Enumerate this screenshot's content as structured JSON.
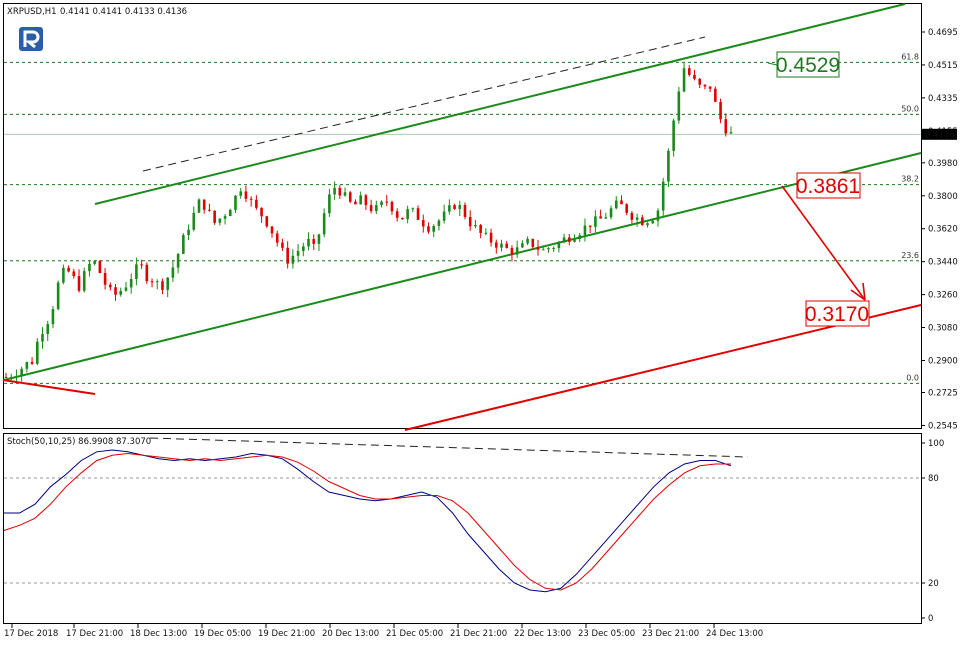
{
  "chart_data": {
    "type": "candlestick",
    "symbol": "XRPUSD,H1",
    "header_values": [
      "0.4141",
      "0.4141",
      "0.4133",
      "0.4136"
    ],
    "current_price": "0.4136",
    "price_ticks": [
      "0.4695",
      "0.4515",
      "0.4335",
      "0.4155",
      "0.3980",
      "0.3800",
      "0.3620",
      "0.3440",
      "0.3260",
      "0.3080",
      "0.2900",
      "0.2725",
      "0.2545"
    ],
    "time_ticks": [
      "17 Dec 2018",
      "17 Dec 21:00",
      "18 Dec 13:00",
      "19 Dec 05:00",
      "19 Dec 21:00",
      "20 Dec 13:00",
      "21 Dec 05:00",
      "21 Dec 21:00",
      "22 Dec 13:00",
      "23 Dec 05:00",
      "23 Dec 21:00",
      "24 Dec 13:00"
    ],
    "fibonacci": [
      {
        "label": "61.8",
        "price": 0.4529
      },
      {
        "label": "50.0",
        "price": 0.4245
      },
      {
        "label": "38.2",
        "price": 0.3861
      },
      {
        "label": "23.6",
        "price": 0.3445
      },
      {
        "label": "0.0",
        "price": 0.2775
      }
    ],
    "price_labels": [
      {
        "text": "0.4529",
        "color": "#1f7a1f"
      },
      {
        "text": "0.3861",
        "color": "#e00000"
      },
      {
        "text": "0.3170",
        "color": "#e00000"
      }
    ],
    "close_path": [
      0.281,
      0.283,
      0.285,
      0.288,
      0.29,
      0.305,
      0.31,
      0.32,
      0.335,
      0.34,
      0.335,
      0.33,
      0.34,
      0.345,
      0.338,
      0.33,
      0.325,
      0.328,
      0.332,
      0.338,
      0.342,
      0.336,
      0.334,
      0.33,
      0.335,
      0.342,
      0.352,
      0.362,
      0.37,
      0.378,
      0.372,
      0.365,
      0.368,
      0.372,
      0.378,
      0.385,
      0.38,
      0.373,
      0.37,
      0.365,
      0.358,
      0.35,
      0.345,
      0.348,
      0.352,
      0.355,
      0.35,
      0.365,
      0.378,
      0.385,
      0.382,
      0.376,
      0.375,
      0.378,
      0.374,
      0.372,
      0.375,
      0.378,
      0.37,
      0.368,
      0.372,
      0.37,
      0.366,
      0.363,
      0.365,
      0.368,
      0.372,
      0.376,
      0.372,
      0.366,
      0.362,
      0.358,
      0.356,
      0.354,
      0.352,
      0.35,
      0.35,
      0.352,
      0.355,
      0.352,
      0.35,
      0.352,
      0.353,
      0.356,
      0.358,
      0.36,
      0.362,
      0.365,
      0.366,
      0.368,
      0.372,
      0.375,
      0.374,
      0.37,
      0.368,
      0.366,
      0.368,
      0.37,
      0.39,
      0.41,
      0.435,
      0.45,
      0.445,
      0.44,
      0.438,
      0.44,
      0.425,
      0.418,
      0.4136
    ],
    "stoch": {
      "title": "Stoch(50,10,25) 86.9908 87.3070",
      "main": 86.9908,
      "signal": 87.307,
      "levels": [
        80,
        20
      ],
      "ticks": [
        "100",
        "80",
        "20",
        "0"
      ],
      "main_path": [
        60,
        60,
        65,
        75,
        82,
        90,
        95,
        96,
        95,
        93,
        91,
        90,
        91,
        90,
        91,
        92,
        94,
        93,
        91,
        85,
        78,
        72,
        70,
        68,
        67,
        68,
        70,
        72,
        69,
        60,
        48,
        38,
        28,
        20,
        16,
        15,
        17,
        25,
        35,
        45,
        55,
        65,
        75,
        83,
        88,
        90,
        90,
        87
      ],
      "signal_path": [
        50,
        53,
        57,
        65,
        75,
        83,
        90,
        93,
        94,
        93,
        92,
        91,
        90,
        91,
        90,
        91,
        92,
        93,
        92,
        89,
        84,
        78,
        74,
        70,
        68,
        68,
        69,
        70,
        70,
        67,
        60,
        50,
        40,
        30,
        22,
        17,
        16,
        20,
        28,
        38,
        48,
        58,
        68,
        76,
        83,
        87,
        88,
        88
      ]
    },
    "colors": {
      "channel": "#1b8a1b",
      "target": "#e00000",
      "fib": "#1a7a1a",
      "stoch_main": "#000080",
      "stoch_signal": "#e00000"
    }
  }
}
